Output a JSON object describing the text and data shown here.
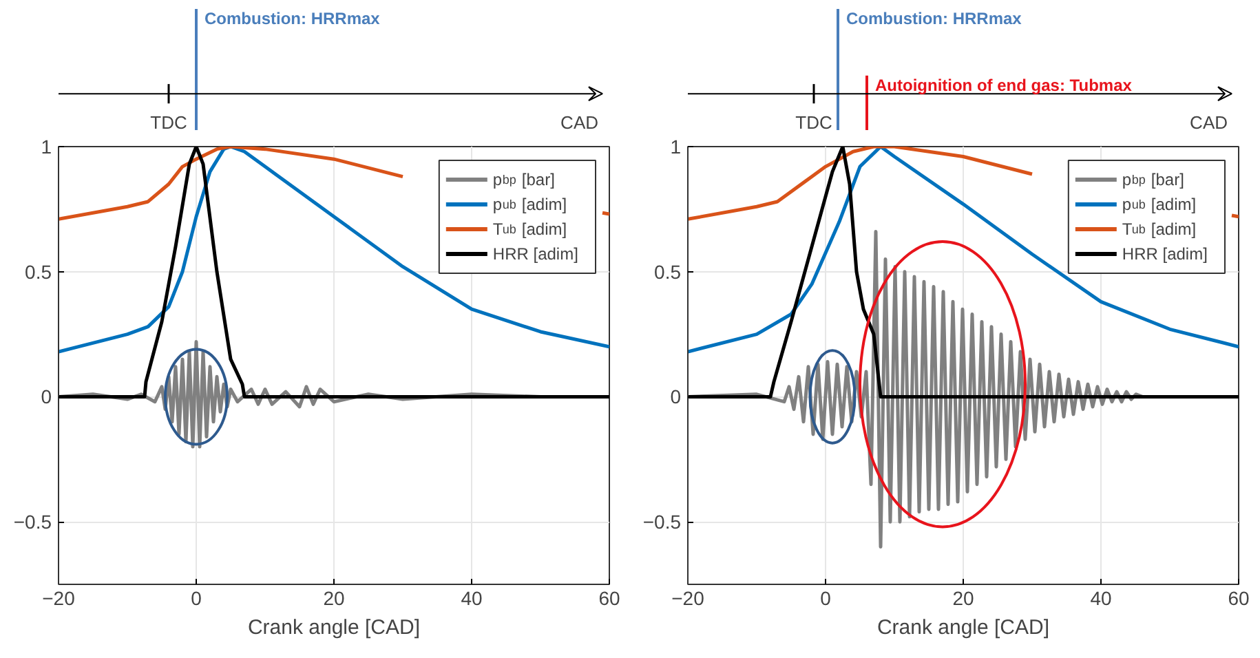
{
  "chart_data": [
    {
      "type": "line",
      "xlabel": "Crank angle [CAD]",
      "xlim": [
        -20,
        60
      ],
      "xticks": [
        -20,
        0,
        20,
        40,
        60
      ],
      "ylim": [
        -0.75,
        1
      ],
      "yticks": [
        -0.5,
        0,
        0.5,
        1
      ],
      "grid": true,
      "legend": "top right",
      "ref_lines": [
        {
          "axis": "x",
          "value": 0,
          "label": "Combustion: HRRmax",
          "color": "#4a7ebb"
        }
      ],
      "annotations": [
        {
          "text": "TDC",
          "x": -4
        },
        "CAD"
      ],
      "series": [
        {
          "name": "p$_{bp}$ [bar]",
          "color": "#808080",
          "x": [
            -20,
            -15,
            -10,
            -8,
            -6,
            -5,
            -4.5,
            -4,
            -3.5,
            -3,
            -2.5,
            -2,
            -1.5,
            -1,
            -0.5,
            0,
            0.5,
            1,
            1.5,
            2,
            2.5,
            3,
            3.5,
            4,
            4.5,
            5,
            6,
            8,
            9,
            10,
            11,
            13,
            15,
            16,
            17,
            18,
            20,
            25,
            30,
            40,
            50,
            60
          ],
          "values": [
            0,
            0.01,
            -0.01,
            0.01,
            -0.02,
            0.04,
            -0.05,
            0.08,
            -0.1,
            0.12,
            -0.15,
            0.15,
            -0.18,
            0.18,
            -0.2,
            0.22,
            -0.2,
            0.18,
            -0.16,
            0.12,
            -0.1,
            0.08,
            -0.06,
            0.05,
            -0.04,
            0.03,
            -0.02,
            0.03,
            -0.03,
            0.03,
            -0.03,
            0.02,
            -0.04,
            0.04,
            -0.03,
            0.03,
            -0.02,
            0.01,
            -0.01,
            0.01,
            0,
            0
          ]
        },
        {
          "name": "p$_{ub}$ [adim]",
          "color": "#0072bd",
          "x": [
            -20,
            -10,
            -7,
            -4,
            -2,
            0,
            2,
            4,
            5,
            7,
            10,
            20,
            30,
            40,
            50,
            60
          ],
          "values": [
            0.18,
            0.25,
            0.28,
            0.36,
            0.5,
            0.72,
            0.9,
            0.99,
            1,
            0.98,
            0.92,
            0.72,
            0.52,
            0.35,
            0.26,
            0.2
          ]
        },
        {
          "name": "T$_{ub}$ [adim]",
          "color": "#d95319",
          "x": [
            -20,
            -10,
            -7,
            -4,
            -2,
            0,
            3,
            5,
            10,
            20,
            30,
            40,
            50,
            59,
            60
          ],
          "values": [
            0.71,
            0.76,
            0.78,
            0.85,
            0.92,
            0.95,
            0.99,
            1,
            0.99,
            0.95,
            0.88,
            null,
            null,
            0.735,
            0.73
          ]
        },
        {
          "name": "HRR [adim]",
          "color": "#000000",
          "x": [
            -20,
            -7.5,
            -7.3,
            -5,
            -3,
            -1,
            0,
            1,
            3,
            5,
            6.7,
            7,
            60
          ],
          "values": [
            0,
            0,
            0.06,
            0.3,
            0.6,
            0.93,
            1,
            0.93,
            0.5,
            0.15,
            0.05,
            0,
            0
          ]
        }
      ]
    },
    {
      "type": "line",
      "xlabel": "Crank angle [CAD]",
      "xlim": [
        -20,
        60
      ],
      "xticks": [
        -20,
        0,
        20,
        40,
        60
      ],
      "ylim": [
        -0.75,
        1
      ],
      "yticks": [
        -0.5,
        0,
        0.5,
        1
      ],
      "grid": true,
      "legend": "top right",
      "ref_lines": [
        {
          "axis": "x",
          "value": 1.8,
          "label": "Combustion: HRRmax",
          "color": "#4a7ebb"
        },
        {
          "axis": "x",
          "value": 6,
          "label": "Autoignition of end gas: Tubmax",
          "color": "#e8141c"
        }
      ],
      "annotations": [
        {
          "text": "TDC",
          "x": -1.7
        },
        "CAD"
      ],
      "series": [
        {
          "name": "p$_{bp}$ [bar]",
          "color": "#808080",
          "x": [
            -20,
            -10,
            -6,
            -5.3,
            -4.6,
            -3.9,
            -3.2,
            -2.5,
            -1.8,
            -1.1,
            -0.4,
            0.3,
            1,
            1.7,
            2.4,
            3.1,
            3.8,
            4.5,
            5.2,
            5.9,
            6.6,
            7.3,
            8,
            8.7,
            9.4,
            10.1,
            10.8,
            11.5,
            12.2,
            12.9,
            13.6,
            14.3,
            15,
            15.7,
            16.4,
            17.1,
            17.8,
            18.5,
            19.2,
            19.9,
            20.6,
            21.3,
            22,
            22.7,
            23.4,
            24.1,
            24.8,
            25.5,
            26.2,
            26.9,
            27.6,
            28.3,
            29,
            29.7,
            30.4,
            31.1,
            31.8,
            32.5,
            33.2,
            33.9,
            34.6,
            35.3,
            36,
            36.7,
            37.4,
            38.1,
            38.8,
            39.5,
            40.2,
            40.9,
            41.6,
            42.3,
            43,
            43.7,
            44.4,
            45.1,
            46,
            50,
            60
          ],
          "values": [
            0,
            0.01,
            -0.02,
            0.04,
            -0.05,
            0.08,
            -0.1,
            0.12,
            -0.15,
            0.13,
            -0.17,
            0.14,
            -0.15,
            0.13,
            -0.12,
            0.12,
            -0.1,
            0.1,
            -0.08,
            0.1,
            -0.35,
            0.66,
            -0.6,
            0.55,
            -0.5,
            0.52,
            -0.5,
            0.5,
            -0.48,
            0.48,
            -0.46,
            0.46,
            -0.45,
            0.44,
            -0.45,
            0.42,
            -0.43,
            0.38,
            -0.42,
            0.35,
            -0.38,
            0.33,
            -0.35,
            0.3,
            -0.32,
            0.28,
            -0.28,
            0.25,
            -0.25,
            0.22,
            -0.2,
            0.18,
            -0.17,
            0.15,
            -0.14,
            0.13,
            -0.12,
            0.1,
            -0.1,
            0.09,
            -0.08,
            0.07,
            -0.07,
            0.06,
            -0.05,
            0.05,
            -0.04,
            0.04,
            -0.03,
            0.03,
            -0.02,
            0.02,
            -0.02,
            0.02,
            -0.01,
            0.01,
            0,
            0,
            0
          ]
        },
        {
          "name": "p$_{ub}$ [adim]",
          "color": "#0072bd",
          "x": [
            -20,
            -10,
            -5,
            -2,
            2,
            5,
            8,
            10,
            20,
            30,
            40,
            50,
            60
          ],
          "values": [
            0.18,
            0.25,
            0.33,
            0.45,
            0.7,
            0.92,
            1,
            0.96,
            0.77,
            0.57,
            0.38,
            0.27,
            0.2
          ]
        },
        {
          "name": "T$_{ub}$ [adim]",
          "color": "#d95319",
          "x": [
            -20,
            -10,
            -7,
            -3,
            0,
            4,
            7,
            10,
            20,
            30,
            40,
            50,
            59,
            60
          ],
          "values": [
            0.71,
            0.76,
            0.78,
            0.86,
            0.92,
            0.98,
            1,
            1,
            0.96,
            0.89,
            null,
            null,
            0.725,
            0.72
          ]
        },
        {
          "name": "HRR [adim]",
          "color": "#000000",
          "x": [
            -20,
            -8,
            -7.5,
            -5,
            -2,
            0,
            1,
            2.5,
            3.5,
            4.5,
            5.5,
            7,
            8,
            60
          ],
          "values": [
            0,
            0,
            0.06,
            0.3,
            0.6,
            0.8,
            0.9,
            1,
            0.85,
            0.5,
            0.35,
            0.25,
            0,
            0
          ]
        }
      ]
    }
  ]
}
